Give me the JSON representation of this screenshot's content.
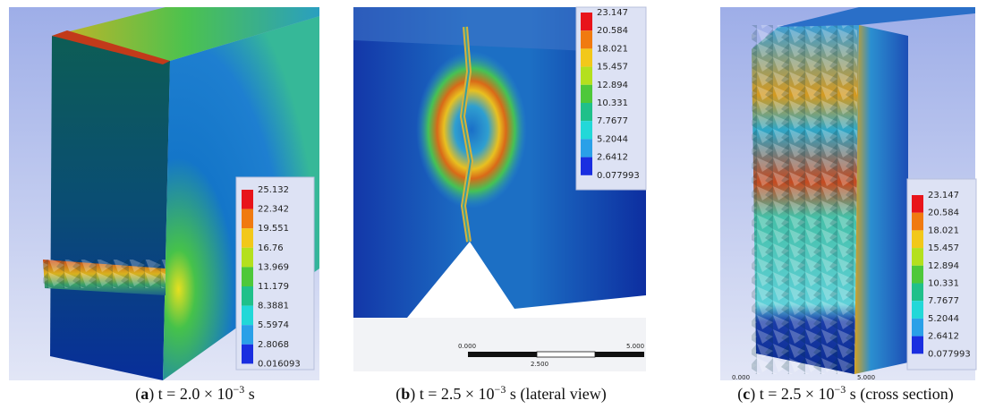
{
  "panels": [
    {
      "caption": [
        "(",
        "a",
        ") t = 2.0 × 10",
        "−3",
        " s"
      ],
      "legend": [
        "25.132",
        "22.342",
        "19.551",
        "16.76",
        "13.969",
        "11.179",
        "8.3881",
        "5.5974",
        "2.8068",
        "0.016093"
      ]
    },
    {
      "caption": [
        "(",
        "b",
        ") t = 2.5 × 10",
        "−3",
        " s (lateral view)"
      ],
      "legend": [
        "23.147",
        "20.584",
        "18.021",
        "15.457",
        "12.894",
        "10.331",
        "7.7677",
        "5.2044",
        "2.6412",
        "0.077993"
      ],
      "scale": [
        "0.000",
        "5.000",
        "2.500"
      ]
    },
    {
      "caption": [
        "(",
        "c",
        ") t = 2.5 × 10",
        "−3",
        " s (cross section)"
      ],
      "legend": [
        "23.147",
        "20.584",
        "18.021",
        "15.457",
        "12.894",
        "10.331",
        "7.7677",
        "5.2044",
        "2.6412",
        "0.077993"
      ],
      "scale": [
        "0.000",
        "5.000"
      ]
    }
  ]
}
